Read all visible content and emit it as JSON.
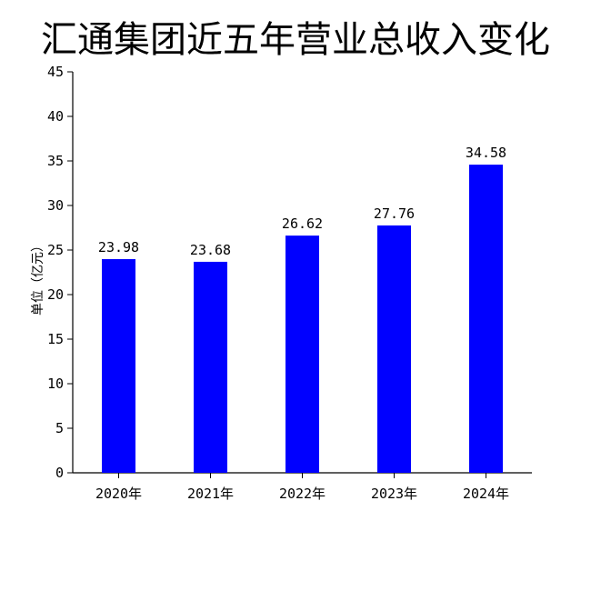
{
  "chart_data": {
    "type": "bar",
    "title": "汇通集团近五年营业总收入变化",
    "ylabel": "单位（亿元）",
    "xlabel": "",
    "categories": [
      "2020年",
      "2021年",
      "2022年",
      "2023年",
      "2024年"
    ],
    "values": [
      23.98,
      23.68,
      26.62,
      27.76,
      34.58
    ],
    "data_labels": [
      "23.98",
      "23.68",
      "26.62",
      "27.76",
      "34.58"
    ],
    "ylim": [
      0,
      45
    ],
    "yticks": [
      0,
      5,
      10,
      15,
      20,
      25,
      30,
      35,
      40,
      45
    ],
    "bar_color": "#0000ff",
    "grid": false,
    "legend": "none"
  }
}
